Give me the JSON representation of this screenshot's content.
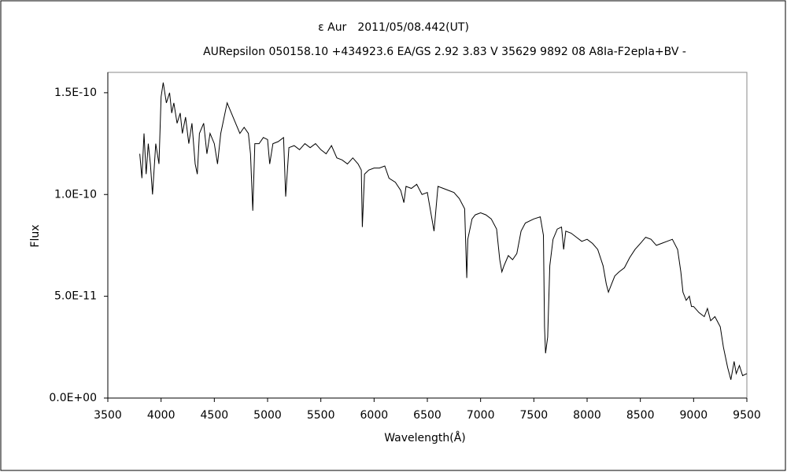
{
  "chart_data": {
    "type": "line",
    "title": "ε Aur　2011/05/08.442(UT)",
    "subtitle": "AURepsilon 050158.10 +434923.6 EA/GS 2.92 3.83 V 35629 9892 08 A8Ia-F2epIa+BV -",
    "xlabel": "Wavelength(Å)",
    "ylabel": "Flux",
    "xlim": [
      3500,
      9500
    ],
    "ylim": [
      0,
      1.6e-10
    ],
    "xticks": [
      3500,
      4000,
      4500,
      5000,
      5500,
      6000,
      6500,
      7000,
      7500,
      8000,
      8500,
      9000,
      9500
    ],
    "yticks": [
      {
        "value": 0,
        "label": "0.0E+00"
      },
      {
        "value": 5e-11,
        "label": "5.0E-11"
      },
      {
        "value": 1e-10,
        "label": "1.0E-10"
      },
      {
        "value": 1.5e-10,
        "label": "1.5E-10"
      }
    ],
    "color": "#000000",
    "x": [
      3800,
      3820,
      3840,
      3860,
      3880,
      3900,
      3920,
      3950,
      3980,
      4000,
      4020,
      4050,
      4080,
      4100,
      4120,
      4150,
      4180,
      4200,
      4230,
      4260,
      4290,
      4320,
      4340,
      4360,
      4400,
      4430,
      4460,
      4500,
      4530,
      4560,
      4600,
      4620,
      4660,
      4700,
      4740,
      4780,
      4820,
      4840,
      4861,
      4880,
      4920,
      4960,
      5000,
      5020,
      5050,
      5100,
      5150,
      5170,
      5200,
      5250,
      5300,
      5350,
      5400,
      5450,
      5500,
      5550,
      5600,
      5650,
      5700,
      5750,
      5800,
      5850,
      5880,
      5890,
      5910,
      5950,
      6000,
      6050,
      6100,
      6140,
      6200,
      6250,
      6280,
      6300,
      6350,
      6400,
      6450,
      6500,
      6563,
      6600,
      6650,
      6700,
      6750,
      6800,
      6850,
      6870,
      6880,
      6920,
      6950,
      7000,
      7050,
      7100,
      7150,
      7180,
      7200,
      7220,
      7260,
      7300,
      7340,
      7380,
      7420,
      7500,
      7560,
      7590,
      7600,
      7610,
      7630,
      7650,
      7680,
      7720,
      7760,
      7780,
      7800,
      7850,
      7900,
      7950,
      8000,
      8050,
      8100,
      8150,
      8180,
      8200,
      8230,
      8260,
      8300,
      8350,
      8400,
      8450,
      8500,
      8550,
      8600,
      8650,
      8700,
      8750,
      8800,
      8850,
      8880,
      8900,
      8930,
      8960,
      8980,
      9000,
      9050,
      9100,
      9130,
      9160,
      9200,
      9250,
      9280,
      9320,
      9350,
      9380,
      9400,
      9430,
      9460,
      9500
    ],
    "values": [
      1.2e-10,
      1.08e-10,
      1.3e-10,
      1.1e-10,
      1.25e-10,
      1.15e-10,
      1e-10,
      1.25e-10,
      1.15e-10,
      1.48e-10,
      1.55e-10,
      1.45e-10,
      1.5e-10,
      1.4e-10,
      1.45e-10,
      1.35e-10,
      1.4e-10,
      1.3e-10,
      1.38e-10,
      1.25e-10,
      1.35e-10,
      1.15e-10,
      1.1e-10,
      1.3e-10,
      1.35e-10,
      1.2e-10,
      1.3e-10,
      1.25e-10,
      1.15e-10,
      1.3e-10,
      1.4e-10,
      1.45e-10,
      1.4e-10,
      1.35e-10,
      1.3e-10,
      1.33e-10,
      1.3e-10,
      1.2e-10,
      9.2e-11,
      1.25e-10,
      1.25e-10,
      1.28e-10,
      1.27e-10,
      1.15e-10,
      1.25e-10,
      1.26e-10,
      1.28e-10,
      9.9e-11,
      1.23e-10,
      1.24e-10,
      1.22e-10,
      1.25e-10,
      1.23e-10,
      1.25e-10,
      1.22e-10,
      1.2e-10,
      1.24e-10,
      1.18e-10,
      1.17e-10,
      1.15e-10,
      1.18e-10,
      1.15e-10,
      1.12e-10,
      8.4e-11,
      1.1e-10,
      1.12e-10,
      1.13e-10,
      1.13e-10,
      1.14e-10,
      1.08e-10,
      1.06e-10,
      1.02e-10,
      9.6e-11,
      1.04e-10,
      1.03e-10,
      1.05e-10,
      1e-10,
      1.01e-10,
      8.2e-11,
      1.04e-10,
      1.03e-10,
      1.02e-10,
      1.01e-10,
      9.8e-11,
      9.3e-11,
      5.9e-11,
      7.8e-11,
      8.8e-11,
      9e-11,
      9.1e-11,
      9e-11,
      8.8e-11,
      8.3e-11,
      6.8e-11,
      6.2e-11,
      6.5e-11,
      7e-11,
      6.8e-11,
      7.1e-11,
      8.2e-11,
      8.6e-11,
      8.8e-11,
      8.9e-11,
      8e-11,
      3.5e-11,
      2.2e-11,
      3e-11,
      6.5e-11,
      7.8e-11,
      8.3e-11,
      8.4e-11,
      7.3e-11,
      8.2e-11,
      8.1e-11,
      7.9e-11,
      7.7e-11,
      7.8e-11,
      7.6e-11,
      7.3e-11,
      6.5e-11,
      5.6e-11,
      5.2e-11,
      5.6e-11,
      6e-11,
      6.2e-11,
      6.4e-11,
      6.9e-11,
      7.3e-11,
      7.6e-11,
      7.9e-11,
      7.8e-11,
      7.5e-11,
      7.6e-11,
      7.7e-11,
      7.8e-11,
      7.3e-11,
      6.2e-11,
      5.2e-11,
      4.8e-11,
      5e-11,
      4.5e-11,
      4.5e-11,
      4.2e-11,
      4e-11,
      4.4e-11,
      3.8e-11,
      4e-11,
      3.5e-11,
      2.5e-11,
      1.5e-11,
      9e-12,
      1.8e-11,
      1.2e-11,
      1.6e-11,
      1.1e-11,
      1.2e-11
    ]
  }
}
